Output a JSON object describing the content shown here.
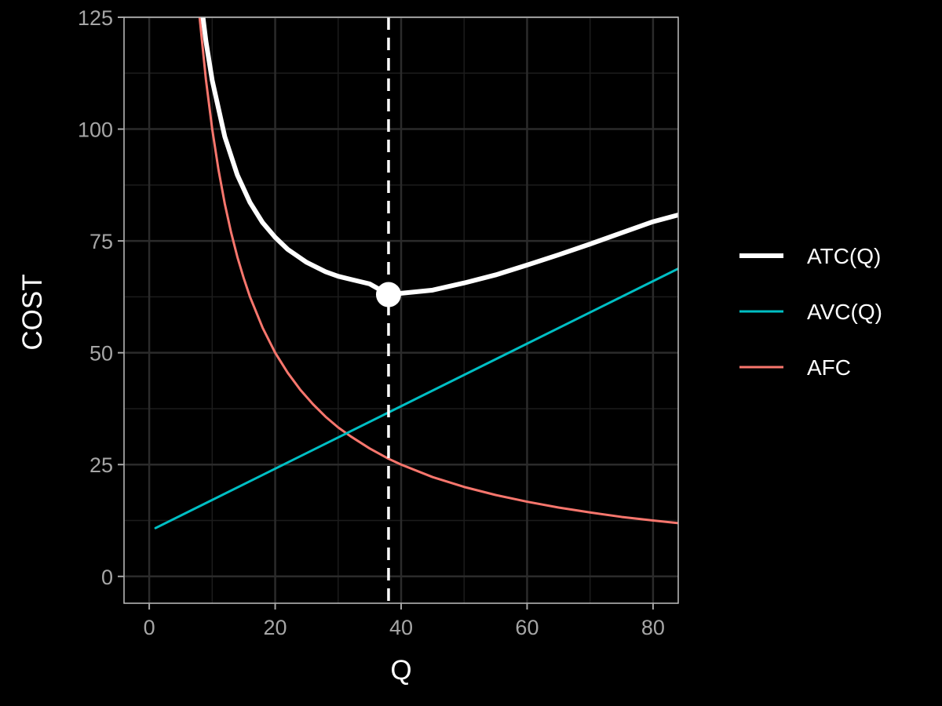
{
  "chart_data": {
    "type": "line",
    "title": "",
    "xlabel": "Q",
    "ylabel": "COST",
    "xlim": [
      -4,
      84
    ],
    "ylim": [
      -6,
      125
    ],
    "x_ticks": [
      0,
      20,
      40,
      60,
      80
    ],
    "y_ticks": [
      0,
      25,
      50,
      75,
      100,
      125
    ],
    "grid": true,
    "legend_position": "right",
    "series": [
      {
        "name": "ATC(Q)",
        "color": "#ffffff",
        "x": [
          8,
          9,
          10,
          12,
          14,
          16,
          18,
          20,
          22,
          25,
          28,
          30,
          32,
          35,
          38,
          40,
          45,
          50,
          55,
          60,
          65,
          70,
          75,
          80,
          84
        ],
        "y": [
          131.0,
          119.7,
          110.9,
          98.3,
          89.7,
          83.6,
          79.1,
          75.8,
          73.1,
          70.2,
          68.1,
          67.1,
          66.4,
          65.4,
          63.0,
          63.3,
          64.0,
          65.6,
          67.4,
          69.6,
          71.9,
          74.3,
          76.8,
          79.3,
          80.8
        ]
      },
      {
        "name": "AVC(Q)",
        "color": "#00bfc4",
        "x": [
          1,
          84
        ],
        "y": [
          10.8,
          68.8
        ]
      },
      {
        "name": "AFC",
        "color": "#f8766d",
        "x": [
          8,
          9,
          10,
          11,
          12,
          13,
          14,
          15,
          16,
          18,
          20,
          22,
          24,
          26,
          28,
          30,
          32,
          35,
          38,
          40,
          45,
          50,
          55,
          60,
          65,
          70,
          75,
          80,
          84
        ],
        "y": [
          125.0,
          111.1,
          100.0,
          90.9,
          83.3,
          76.9,
          71.4,
          66.7,
          62.5,
          55.6,
          50.0,
          45.5,
          41.7,
          38.5,
          35.7,
          33.3,
          31.3,
          28.6,
          26.3,
          25.0,
          22.2,
          20.0,
          18.2,
          16.7,
          15.4,
          14.3,
          13.3,
          12.5,
          11.9
        ]
      }
    ],
    "annotations": [
      {
        "type": "vline",
        "x": 38,
        "style": "dashed",
        "color": "#ffffff"
      },
      {
        "type": "point",
        "x": 38,
        "y": 63,
        "color": "#ffffff"
      }
    ]
  }
}
